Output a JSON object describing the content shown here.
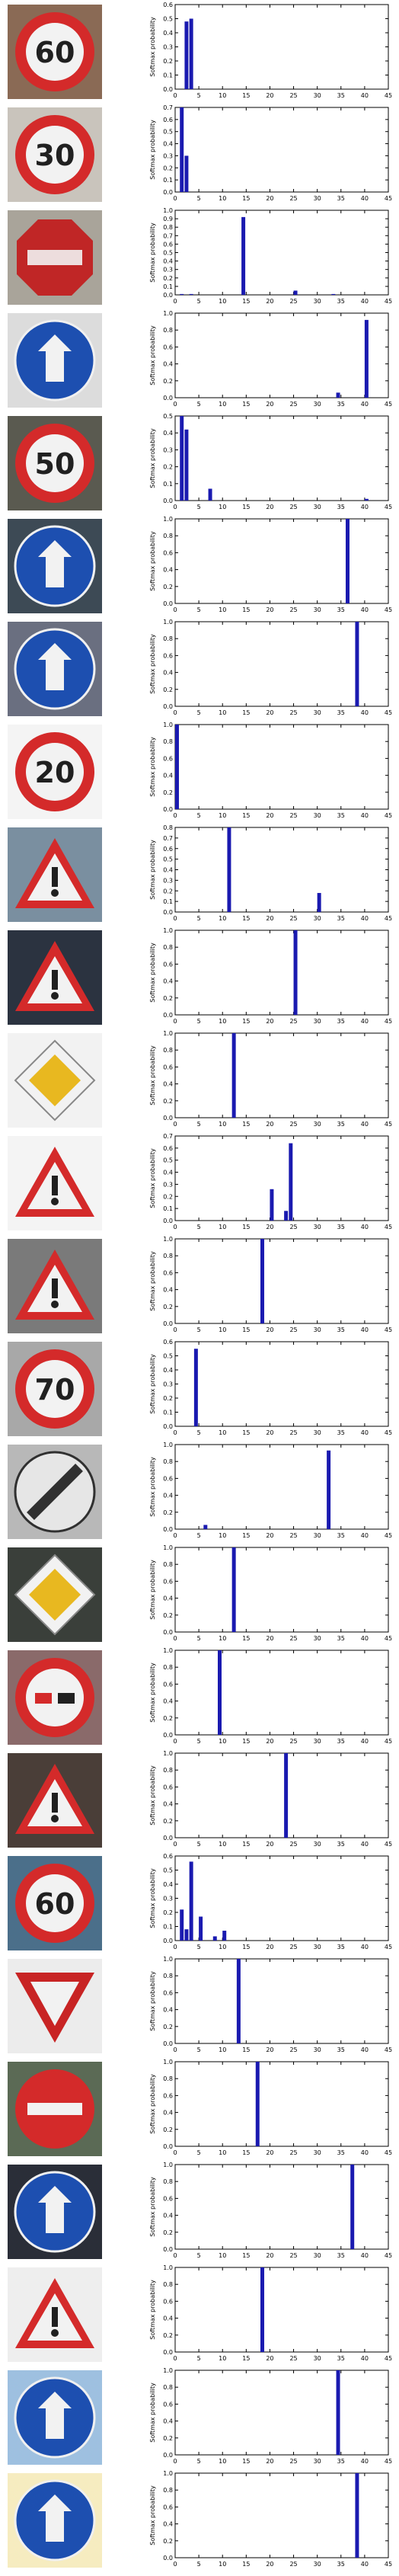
{
  "layout_note": "",
  "colors": {
    "bar": "#1a1ab0",
    "axis": "#000000",
    "background": "#ffffff"
  },
  "chart_data": [
    {
      "type": "bar",
      "sign": "speed-limit-60",
      "ylabel": "Softmax probability",
      "xlim": [
        0,
        45
      ],
      "xticks": [
        5,
        10,
        15,
        20,
        25,
        30,
        35,
        40,
        45
      ],
      "ylim": [
        0,
        0.6
      ],
      "yticks": [
        0.0,
        0.1,
        0.2,
        0.3,
        0.4,
        0.5,
        0.6
      ],
      "bars": [
        {
          "x": 2,
          "y": 0.48
        },
        {
          "x": 3,
          "y": 0.5
        }
      ]
    },
    {
      "type": "bar",
      "sign": "speed-limit-30",
      "ylabel": "Softmax probability",
      "xlim": [
        0,
        45
      ],
      "xticks": [
        5,
        10,
        15,
        20,
        25,
        30,
        35,
        40,
        45
      ],
      "ylim": [
        0,
        0.7
      ],
      "yticks": [
        0.0,
        0.1,
        0.2,
        0.3,
        0.4,
        0.5,
        0.6,
        0.7
      ],
      "bars": [
        {
          "x": 1,
          "y": 0.7
        },
        {
          "x": 2,
          "y": 0.3
        }
      ]
    },
    {
      "type": "bar",
      "sign": "stop",
      "ylabel": "Softmax probability",
      "xlim": [
        0,
        45
      ],
      "xticks": [
        5,
        10,
        15,
        20,
        25,
        30,
        35,
        40,
        45
      ],
      "ylim": [
        0,
        1.0
      ],
      "yticks": [
        0.0,
        0.1,
        0.2,
        0.3,
        0.4,
        0.5,
        0.6,
        0.7,
        0.8,
        0.9,
        1.0
      ],
      "bars": [
        {
          "x": 1,
          "y": 0.01
        },
        {
          "x": 3,
          "y": 0.01
        },
        {
          "x": 14,
          "y": 0.92
        },
        {
          "x": 25,
          "y": 0.05
        },
        {
          "x": 33,
          "y": 0.01
        }
      ]
    },
    {
      "type": "bar",
      "sign": "roundabout-mandatory",
      "ylabel": "Softmax probability",
      "xlim": [
        0,
        45
      ],
      "xticks": [
        5,
        10,
        15,
        20,
        25,
        30,
        35,
        40,
        45
      ],
      "ylim": [
        0,
        1.0
      ],
      "yticks": [
        0.0,
        0.2,
        0.4,
        0.6,
        0.8,
        1.0
      ],
      "bars": [
        {
          "x": 34,
          "y": 0.06
        },
        {
          "x": 40,
          "y": 0.92
        }
      ]
    },
    {
      "type": "bar",
      "sign": "speed-limit-50",
      "ylabel": "Softmax probability",
      "xlim": [
        0,
        45
      ],
      "xticks": [
        5,
        10,
        15,
        20,
        25,
        30,
        35,
        40,
        45
      ],
      "ylim": [
        0,
        0.5
      ],
      "yticks": [
        0.0,
        0.1,
        0.2,
        0.3,
        0.4,
        0.5
      ],
      "bars": [
        {
          "x": 1,
          "y": 0.5
        },
        {
          "x": 2,
          "y": 0.42
        },
        {
          "x": 7,
          "y": 0.07
        },
        {
          "x": 40,
          "y": 0.01
        }
      ]
    },
    {
      "type": "bar",
      "sign": "go-straight-or-right",
      "ylabel": "Softmax probability",
      "xlim": [
        0,
        45
      ],
      "xticks": [
        5,
        10,
        15,
        20,
        25,
        30,
        35,
        40,
        45
      ],
      "ylim": [
        0,
        1.0
      ],
      "yticks": [
        0.0,
        0.2,
        0.4,
        0.6,
        0.8,
        1.0
      ],
      "bars": [
        {
          "x": 36,
          "y": 1.0
        }
      ]
    },
    {
      "type": "bar",
      "sign": "keep-right",
      "ylabel": "Softmax probability",
      "xlim": [
        0,
        45
      ],
      "xticks": [
        5,
        10,
        15,
        20,
        25,
        30,
        35,
        40,
        45
      ],
      "ylim": [
        0,
        1.0
      ],
      "yticks": [
        0.0,
        0.2,
        0.4,
        0.6,
        0.8,
        1.0
      ],
      "bars": [
        {
          "x": 38,
          "y": 1.0
        }
      ]
    },
    {
      "type": "bar",
      "sign": "speed-limit-20",
      "ylabel": "Softmax probability",
      "xlim": [
        0,
        45
      ],
      "xticks": [
        5,
        10,
        15,
        20,
        25,
        30,
        35,
        40,
        45
      ],
      "ylim": [
        0,
        1.0
      ],
      "yticks": [
        0.0,
        0.2,
        0.4,
        0.6,
        0.8,
        1.0
      ],
      "bars": [
        {
          "x": 0,
          "y": 1.0
        }
      ]
    },
    {
      "type": "bar",
      "sign": "right-of-way-at-next-intersection",
      "ylabel": "Softmax probability",
      "xlim": [
        0,
        45
      ],
      "xticks": [
        5,
        10,
        15,
        20,
        25,
        30,
        35,
        40,
        45
      ],
      "ylim": [
        0,
        0.8
      ],
      "yticks": [
        0.0,
        0.1,
        0.2,
        0.3,
        0.4,
        0.5,
        0.6,
        0.7,
        0.8
      ],
      "bars": [
        {
          "x": 11,
          "y": 0.8
        },
        {
          "x": 30,
          "y": 0.18
        }
      ]
    },
    {
      "type": "bar",
      "sign": "road-work",
      "ylabel": "Softmax probability",
      "xlim": [
        0,
        45
      ],
      "xticks": [
        5,
        10,
        15,
        20,
        25,
        30,
        35,
        40,
        45
      ],
      "ylim": [
        0,
        1.0
      ],
      "yticks": [
        0.0,
        0.2,
        0.4,
        0.6,
        0.8,
        1.0
      ],
      "bars": [
        {
          "x": 25,
          "y": 1.0
        }
      ]
    },
    {
      "type": "bar",
      "sign": "priority-road",
      "ylabel": "Softmax probability",
      "xlim": [
        0,
        45
      ],
      "xticks": [
        5,
        10,
        15,
        20,
        25,
        30,
        35,
        40,
        45
      ],
      "ylim": [
        0,
        1.0
      ],
      "yticks": [
        0.0,
        0.2,
        0.4,
        0.6,
        0.8,
        1.0
      ],
      "bars": [
        {
          "x": 12,
          "y": 1.0
        }
      ]
    },
    {
      "type": "bar",
      "sign": "dangerous-curve-right",
      "ylabel": "Softmax probability",
      "xlim": [
        0,
        45
      ],
      "xticks": [
        5,
        10,
        15,
        20,
        25,
        30,
        35,
        40,
        45
      ],
      "ylim": [
        0,
        0.7
      ],
      "yticks": [
        0.0,
        0.1,
        0.2,
        0.3,
        0.4,
        0.5,
        0.6,
        0.7
      ],
      "bars": [
        {
          "x": 20,
          "y": 0.26
        },
        {
          "x": 23,
          "y": 0.08
        },
        {
          "x": 24,
          "y": 0.64
        }
      ]
    },
    {
      "type": "bar",
      "sign": "general-caution",
      "ylabel": "Softmax probability",
      "xlim": [
        0,
        45
      ],
      "xticks": [
        5,
        10,
        15,
        20,
        25,
        30,
        35,
        40,
        45
      ],
      "ylim": [
        0,
        1.0
      ],
      "yticks": [
        0.0,
        0.2,
        0.4,
        0.6,
        0.8,
        1.0
      ],
      "bars": [
        {
          "x": 18,
          "y": 1.0
        }
      ]
    },
    {
      "type": "bar",
      "sign": "speed-limit-70",
      "ylabel": "Softmax probability",
      "xlim": [
        0,
        45
      ],
      "xticks": [
        5,
        10,
        15,
        20,
        25,
        30,
        35,
        40,
        45
      ],
      "ylim": [
        0,
        0.6
      ],
      "yticks": [
        0.0,
        0.1,
        0.2,
        0.3,
        0.4,
        0.5,
        0.6
      ],
      "bars": [
        {
          "x": 4,
          "y": 0.55
        }
      ]
    },
    {
      "type": "bar",
      "sign": "end-of-all-limits",
      "ylabel": "Softmax probability",
      "xlim": [
        0,
        45
      ],
      "xticks": [
        5,
        10,
        15,
        20,
        25,
        30,
        35,
        40,
        45
      ],
      "ylim": [
        0,
        1.0
      ],
      "yticks": [
        0.0,
        0.2,
        0.4,
        0.6,
        0.8,
        1.0
      ],
      "bars": [
        {
          "x": 6,
          "y": 0.05
        },
        {
          "x": 32,
          "y": 0.93
        }
      ]
    },
    {
      "type": "bar",
      "sign": "priority-road-2",
      "ylabel": "Softmax probability",
      "xlim": [
        0,
        45
      ],
      "xticks": [
        5,
        10,
        15,
        20,
        25,
        30,
        35,
        40,
        45
      ],
      "ylim": [
        0,
        1.0
      ],
      "yticks": [
        0.0,
        0.2,
        0.4,
        0.6,
        0.8,
        1.0
      ],
      "bars": [
        {
          "x": 12,
          "y": 1.0
        }
      ]
    },
    {
      "type": "bar",
      "sign": "no-passing",
      "ylabel": "Softmax probability",
      "xlim": [
        0,
        45
      ],
      "xticks": [
        5,
        10,
        15,
        20,
        25,
        30,
        35,
        40,
        45
      ],
      "ylim": [
        0,
        1.0
      ],
      "yticks": [
        0.0,
        0.2,
        0.4,
        0.6,
        0.8,
        1.0
      ],
      "bars": [
        {
          "x": 9,
          "y": 1.0
        }
      ]
    },
    {
      "type": "bar",
      "sign": "slippery-road",
      "ylabel": "Softmax probability",
      "xlim": [
        0,
        45
      ],
      "xticks": [
        5,
        10,
        15,
        20,
        25,
        30,
        35,
        40,
        45
      ],
      "ylim": [
        0,
        1.0
      ],
      "yticks": [
        0.0,
        0.2,
        0.4,
        0.6,
        0.8,
        1.0
      ],
      "bars": [
        {
          "x": 23,
          "y": 1.0
        }
      ]
    },
    {
      "type": "bar",
      "sign": "speed-limit-60-2",
      "ylabel": "Softmax probability",
      "xlim": [
        0,
        45
      ],
      "xticks": [
        5,
        10,
        15,
        20,
        25,
        30,
        35,
        40,
        45
      ],
      "ylim": [
        0,
        0.6
      ],
      "yticks": [
        0.0,
        0.1,
        0.2,
        0.3,
        0.4,
        0.5,
        0.6
      ],
      "bars": [
        {
          "x": 1,
          "y": 0.22
        },
        {
          "x": 2,
          "y": 0.08
        },
        {
          "x": 3,
          "y": 0.56
        },
        {
          "x": 5,
          "y": 0.17
        },
        {
          "x": 8,
          "y": 0.03
        },
        {
          "x": 10,
          "y": 0.07
        }
      ]
    },
    {
      "type": "bar",
      "sign": "yield",
      "ylabel": "Softmax probability",
      "xlim": [
        0,
        45
      ],
      "xticks": [
        5,
        10,
        15,
        20,
        25,
        30,
        35,
        40,
        45
      ],
      "ylim": [
        0,
        1.0
      ],
      "yticks": [
        0.0,
        0.2,
        0.4,
        0.6,
        0.8,
        1.0
      ],
      "bars": [
        {
          "x": 13,
          "y": 1.0
        }
      ]
    },
    {
      "type": "bar",
      "sign": "no-entry",
      "ylabel": "Softmax probability",
      "xlim": [
        0,
        45
      ],
      "xticks": [
        5,
        10,
        15,
        20,
        25,
        30,
        35,
        40,
        45
      ],
      "ylim": [
        0,
        1.0
      ],
      "yticks": [
        0.0,
        0.2,
        0.4,
        0.6,
        0.8,
        1.0
      ],
      "bars": [
        {
          "x": 17,
          "y": 1.0
        }
      ]
    },
    {
      "type": "bar",
      "sign": "go-straight-or-left",
      "ylabel": "Softmax probability",
      "xlim": [
        0,
        45
      ],
      "xticks": [
        5,
        10,
        15,
        20,
        25,
        30,
        35,
        40,
        45
      ],
      "ylim": [
        0,
        1.0
      ],
      "yticks": [
        0.0,
        0.2,
        0.4,
        0.6,
        0.8,
        1.0
      ],
      "bars": [
        {
          "x": 37,
          "y": 1.0
        }
      ]
    },
    {
      "type": "bar",
      "sign": "general-caution-2",
      "ylabel": "Softmax probability",
      "xlim": [
        0,
        45
      ],
      "xticks": [
        5,
        10,
        15,
        20,
        25,
        30,
        35,
        40,
        45
      ],
      "ylim": [
        0,
        1.0
      ],
      "yticks": [
        0.0,
        0.2,
        0.4,
        0.6,
        0.8,
        1.0
      ],
      "bars": [
        {
          "x": 18,
          "y": 1.0
        }
      ]
    },
    {
      "type": "bar",
      "sign": "turn-left-ahead",
      "ylabel": "Softmax probability",
      "xlim": [
        0,
        45
      ],
      "xticks": [
        5,
        10,
        15,
        20,
        25,
        30,
        35,
        40,
        45
      ],
      "ylim": [
        0,
        1.0
      ],
      "yticks": [
        0.0,
        0.2,
        0.4,
        0.6,
        0.8,
        1.0
      ],
      "bars": [
        {
          "x": 34,
          "y": 1.0
        }
      ]
    },
    {
      "type": "bar",
      "sign": "keep-right-2",
      "ylabel": "Softmax probability",
      "xlim": [
        0,
        45
      ],
      "xticks": [
        5,
        10,
        15,
        20,
        25,
        30,
        35,
        40,
        45
      ],
      "ylim": [
        0,
        1.0
      ],
      "yticks": [
        0.0,
        0.2,
        0.4,
        0.6,
        0.8,
        1.0
      ],
      "bars": [
        {
          "x": 38,
          "y": 1.0
        }
      ]
    }
  ]
}
